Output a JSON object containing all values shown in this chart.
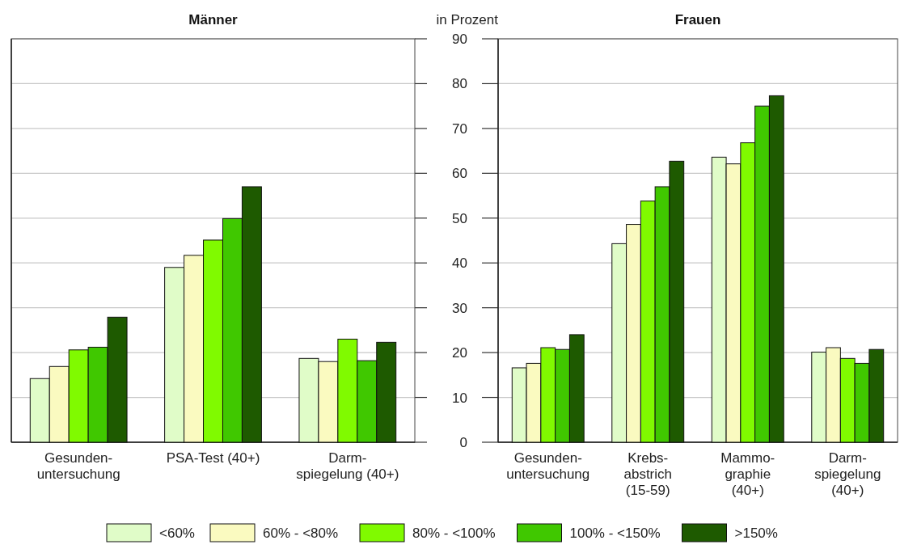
{
  "chart_data": [
    {
      "type": "bar",
      "title": "Männer",
      "categories": [
        "Gesunden-\nuntersuchung",
        "PSA-Test (40+)",
        "Darm-\nspiegelung (40+)"
      ],
      "series": [
        {
          "color": "#e0fcc8",
          "values": [
            14.2,
            39.0,
            18.7
          ]
        },
        {
          "color": "#fafac0",
          "values": [
            16.9,
            41.7,
            18.0
          ]
        },
        {
          "color": "#80fa00",
          "values": [
            20.6,
            45.1,
            23.0
          ]
        },
        {
          "color": "#40c800",
          "values": [
            21.2,
            49.9,
            18.2
          ]
        },
        {
          "color": "#1e5a00",
          "values": [
            27.9,
            57.0,
            22.3
          ]
        }
      ],
      "ylim": [
        0,
        90
      ],
      "yticks": [
        0,
        10,
        20,
        30,
        40,
        50,
        60,
        70,
        80,
        90
      ],
      "grid": "y",
      "tick_labels": "x"
    },
    {
      "type": "bar",
      "title": "Frauen",
      "ylabel": "in Prozent",
      "categories": [
        "Gesunden-\nuntersuchung",
        "Krebs-\nabstrich\n(15-59)",
        "Mammo-\ngraphie\n(40+)",
        "Darm-\nspiegelung\n(40+)"
      ],
      "series": [
        {
          "name": "<60%",
          "color": "#e0fcc8",
          "values": [
            16.6,
            44.3,
            63.6,
            20.1
          ]
        },
        {
          "name": "60% - <80%",
          "color": "#fafac0",
          "values": [
            17.6,
            48.6,
            62.1,
            21.1
          ]
        },
        {
          "name": "80% - <100%",
          "color": "#80fa00",
          "values": [
            21.1,
            53.8,
            66.8,
            18.7
          ]
        },
        {
          "name": "100% - <150%",
          "color": "#40c800",
          "values": [
            20.7,
            57.0,
            75.0,
            17.6
          ]
        },
        {
          "name": ">150%",
          "color": "#1e5a00",
          "values": [
            24.0,
            62.7,
            77.3,
            20.7
          ]
        }
      ],
      "ylim": [
        0,
        90
      ],
      "yticks": [
        0,
        10,
        20,
        30,
        40,
        50,
        60,
        70,
        80,
        90
      ],
      "grid": "y",
      "legend": "bottom"
    }
  ]
}
